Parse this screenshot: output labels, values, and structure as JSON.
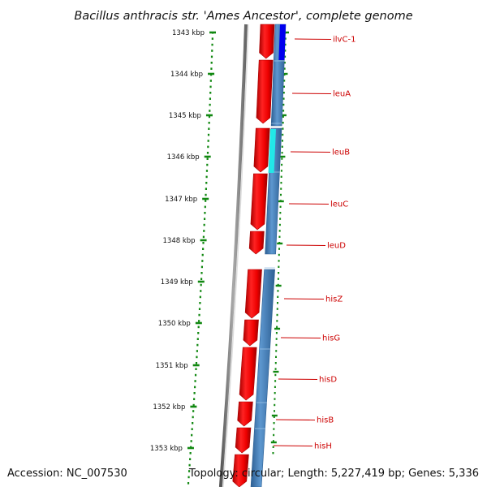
{
  "title": "Bacillus anthracis str. 'Ames Ancestor', complete genome",
  "footer": {
    "accession": "Accession: NC_007530",
    "topology": "Topology: circular; Length: 5,227,419 bp; Genes: 5,336"
  },
  "ruler": {
    "labels": [
      "1343 kbp",
      "1344 kbp",
      "1345 kbp",
      "1346 kbp",
      "1347 kbp",
      "1348 kbp",
      "1349 kbp",
      "1350 kbp",
      "1351 kbp",
      "1352 kbp",
      "1353 kbp"
    ]
  },
  "genes": [
    {
      "name": "ilvC-1"
    },
    {
      "name": "leuA"
    },
    {
      "name": "leuB"
    },
    {
      "name": "leuC"
    },
    {
      "name": "leuD"
    },
    {
      "name": "hisZ"
    },
    {
      "name": "hisG"
    },
    {
      "name": "hisD"
    },
    {
      "name": "hisB"
    },
    {
      "name": "hisH"
    }
  ],
  "colors": {
    "forward_strand": "#ee0000",
    "reverse_strand": "#4d86bd",
    "ilvC_highlight": "#0000ee",
    "leuB_highlight": "#22e8e8",
    "ruler": "#118811",
    "label_line": "#cc0000",
    "backbone": "#888888"
  }
}
